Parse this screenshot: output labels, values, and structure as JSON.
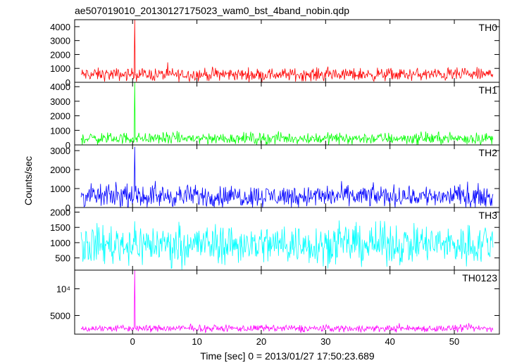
{
  "chart_data": {
    "type": "line",
    "title": "ae507019010_20130127175023_wam0_bst_4band_nobin.qdp",
    "xlabel": "Time [sec] 0 = 2013/01/27 17:50:23.689",
    "ylabel": "Counts/sec",
    "xlim": [
      -9,
      57
    ],
    "x_ticks": [
      0,
      10,
      20,
      30,
      40,
      50
    ],
    "x_tick_labels": [
      "0",
      "10",
      "20",
      "30",
      "40",
      "50"
    ],
    "grid": false,
    "panels": [
      {
        "name": "TH0",
        "color": "#ff0000",
        "ylim": [
          0,
          4500
        ],
        "y_ticks": [
          0,
          1000,
          2000,
          3000,
          4000
        ],
        "y_tick_labels": [
          "0",
          "1000",
          "2000",
          "3000",
          "4000"
        ],
        "x_range": [
          -8,
          56
        ],
        "baseline": 560,
        "noise": 160,
        "spike_x": 0.3,
        "spike_peak": 4500
      },
      {
        "name": "TH1",
        "color": "#00ff00",
        "ylim": [
          0,
          4300
        ],
        "y_ticks": [
          0,
          1000,
          2000,
          3000,
          4000
        ],
        "y_tick_labels": [
          "0",
          "1000",
          "2000",
          "3000",
          "4000"
        ],
        "x_range": [
          -8,
          56
        ],
        "baseline": 450,
        "noise": 140,
        "spike_x": 0.3,
        "spike_peak": 4300
      },
      {
        "name": "TH2",
        "color": "#0000ff",
        "ylim": [
          0,
          3300
        ],
        "y_ticks": [
          0,
          1000,
          2000,
          3000
        ],
        "y_tick_labels": [
          "0",
          "1000",
          "2000",
          "3000"
        ],
        "x_range": [
          -8,
          56
        ],
        "baseline": 600,
        "noise": 200,
        "spike_x": 0.3,
        "spike_peak": 3200
      },
      {
        "name": "TH3",
        "color": "#00ffff",
        "ylim": [
          100,
          2150
        ],
        "y_ticks": [
          500,
          1000,
          1500,
          2000
        ],
        "y_tick_labels": [
          "500",
          "1000",
          "1500",
          "2000"
        ],
        "x_range": [
          -8,
          56
        ],
        "baseline": 950,
        "noise": 230,
        "spike_x": null,
        "spike_peak": null
      },
      {
        "name": "TH0123",
        "color": "#ff00ff",
        "ylim": [
          1500,
          13500
        ],
        "y_ticks": [
          5000,
          10000
        ],
        "y_tick_labels": [
          "5000",
          "10⁴"
        ],
        "x_range": [
          -8,
          56
        ],
        "baseline": 2580,
        "noise": 230,
        "spike_x": 0.3,
        "spike_peak": 13500
      }
    ]
  }
}
